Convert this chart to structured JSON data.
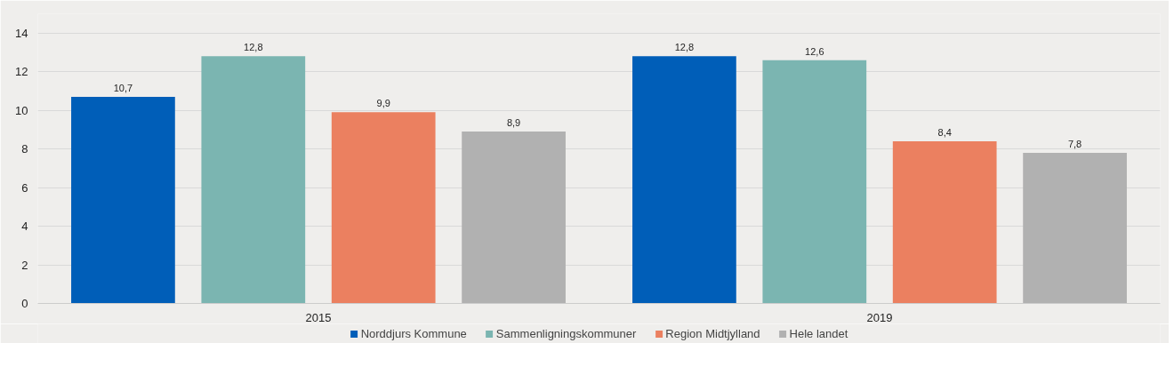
{
  "chart_data": {
    "type": "bar",
    "categories": [
      "2015",
      "2019"
    ],
    "series": [
      {
        "name": "Norddjurs Kommune",
        "color": "#005eb8",
        "values": [
          10.7,
          12.8
        ],
        "value_labels": [
          "10,7",
          "12,8"
        ]
      },
      {
        "name": "Sammenligningskommuner",
        "color": "#7bb5b1",
        "values": [
          12.8,
          12.6
        ],
        "value_labels": [
          "12,8",
          "12,6"
        ]
      },
      {
        "name": "Region Midtjylland",
        "color": "#eb8060",
        "values": [
          9.9,
          8.4
        ],
        "value_labels": [
          "9,9",
          "8,4"
        ]
      },
      {
        "name": "Hele landet",
        "color": "#b1b1b1",
        "values": [
          8.9,
          7.8
        ],
        "value_labels": [
          "8,9",
          "7,8"
        ]
      }
    ],
    "ylim": [
      0,
      15
    ],
    "yticks": [
      0,
      2,
      4,
      6,
      8,
      10,
      12,
      14
    ],
    "grid": "y",
    "legend": "bottom"
  }
}
